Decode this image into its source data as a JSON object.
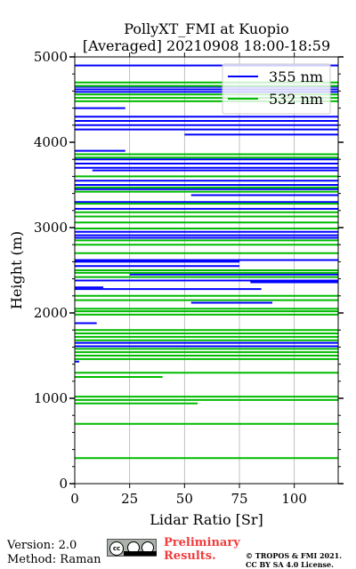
{
  "chart_data": {
    "type": "line",
    "title": "PollyXT_FMI at Kuopio",
    "subtitle": "[Averaged] 20210908 18:00-18:59",
    "xlabel": "Lidar Ratio [Sr]",
    "ylabel": "Height (m)",
    "xlim": [
      0,
      120
    ],
    "ylim": [
      0,
      5000
    ],
    "x_ticks": [
      "0",
      "25",
      "50",
      "75",
      "100"
    ],
    "y_ticks": [
      "0",
      "1000",
      "2000",
      "3000",
      "4000",
      "5000"
    ],
    "grid": "vertical",
    "legend_position": "top-right",
    "series": [
      {
        "name": "355 nm",
        "color": "#0000ff",
        "segments": [
          [
            0,
            120,
            4900
          ],
          [
            0,
            120,
            4650
          ],
          [
            0,
            120,
            4620
          ],
          [
            0,
            120,
            4590
          ],
          [
            0,
            23,
            4400
          ],
          [
            0,
            120,
            4300
          ],
          [
            0,
            120,
            4250
          ],
          [
            0,
            120,
            4200
          ],
          [
            0,
            120,
            4150
          ],
          [
            50,
            120,
            4090
          ],
          [
            0,
            23,
            3900
          ],
          [
            0,
            120,
            3800
          ],
          [
            0,
            120,
            3750
          ],
          [
            0,
            120,
            3700
          ],
          [
            8,
            120,
            3670
          ],
          [
            0,
            120,
            3550
          ],
          [
            0,
            120,
            3500
          ],
          [
            0,
            120,
            3450
          ],
          [
            53,
            120,
            3380
          ],
          [
            0,
            120,
            3300
          ],
          [
            0,
            120,
            3220
          ],
          [
            0,
            120,
            2950
          ],
          [
            0,
            120,
            2910
          ],
          [
            0,
            120,
            2880
          ],
          [
            0,
            120,
            2620
          ],
          [
            0,
            75,
            2600
          ],
          [
            0,
            75,
            2550
          ],
          [
            25,
            120,
            2450
          ],
          [
            0,
            120,
            2380
          ],
          [
            80,
            120,
            2360
          ],
          [
            0,
            13,
            2300
          ],
          [
            0,
            85,
            2280
          ],
          [
            53,
            90,
            2120
          ],
          [
            0,
            10,
            1880
          ],
          [
            0,
            120,
            1650
          ],
          [
            0,
            120,
            1610
          ],
          [
            0,
            2,
            1430
          ]
        ]
      },
      {
        "name": "532 nm",
        "color": "#00bb00",
        "segments": [
          [
            0,
            120,
            4700
          ],
          [
            0,
            120,
            4660
          ],
          [
            0,
            120,
            4560
          ],
          [
            0,
            120,
            4520
          ],
          [
            0,
            120,
            4480
          ],
          [
            0,
            120,
            3860
          ],
          [
            0,
            120,
            3820
          ],
          [
            0,
            120,
            3600
          ],
          [
            0,
            120,
            3470
          ],
          [
            0,
            120,
            3420
          ],
          [
            0,
            120,
            3280
          ],
          [
            0,
            120,
            3180
          ],
          [
            0,
            120,
            3130
          ],
          [
            0,
            120,
            3060
          ],
          [
            0,
            120,
            2990
          ],
          [
            0,
            120,
            2850
          ],
          [
            0,
            120,
            2800
          ],
          [
            0,
            120,
            2700
          ],
          [
            0,
            120,
            2500
          ],
          [
            0,
            120,
            2470
          ],
          [
            0,
            120,
            2420
          ],
          [
            0,
            120,
            2200
          ],
          [
            0,
            120,
            2150
          ],
          [
            0,
            120,
            2050
          ],
          [
            0,
            120,
            2020
          ],
          [
            0,
            120,
            1980
          ],
          [
            0,
            120,
            1800
          ],
          [
            0,
            120,
            1760
          ],
          [
            0,
            120,
            1720
          ],
          [
            0,
            120,
            1680
          ],
          [
            0,
            120,
            1580
          ],
          [
            0,
            120,
            1540
          ],
          [
            0,
            120,
            1500
          ],
          [
            0,
            120,
            1460
          ],
          [
            0,
            120,
            1300
          ],
          [
            0,
            40,
            1250
          ],
          [
            0,
            120,
            1020
          ],
          [
            0,
            120,
            980
          ],
          [
            0,
            56,
            940
          ],
          [
            0,
            120,
            700
          ],
          [
            0,
            120,
            300
          ]
        ]
      }
    ]
  },
  "footer": {
    "version": "Version: 2.0",
    "method": "Method: Raman",
    "cc_label": "cc",
    "preliminary_line1": "Preliminary",
    "preliminary_line2": "Results.",
    "copyright_line1": "© TROPOS & FMI 2021.",
    "copyright_line2": "CC BY SA 4.0 License."
  }
}
